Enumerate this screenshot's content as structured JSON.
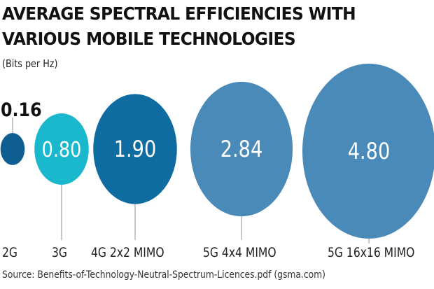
{
  "chart_data": {
    "type": "bubble",
    "title": "AVERAGE SPECTRAL EFFICIENCIES WITH VARIOUS MOBILE TECHNOLOGIES",
    "title_lines": [
      "AVERAGE SPECTRAL EFFICIENCIES WITH",
      "VARIOUS MOBILE TECHNOLOGIES"
    ],
    "unit": "(Bits per Hz)",
    "categories": [
      "2G",
      "3G",
      "4G 2x2 MIMO",
      "5G 4x4 MIMO",
      "5G 16x16 MIMO"
    ],
    "values": [
      0.16,
      0.8,
      1.9,
      2.84,
      4.8
    ],
    "value_labels": [
      "0.16",
      "0.80",
      "1.90",
      "2.84",
      "4.80"
    ],
    "colors": [
      "#0e5e92",
      "#1ab8cc",
      "#0e6ca0",
      "#4a8ab9",
      "#4a8ab9"
    ],
    "source": "Source: Benefits-of-Technology-Neutral-Spectrum-Licences.pdf (gsma.com)"
  }
}
